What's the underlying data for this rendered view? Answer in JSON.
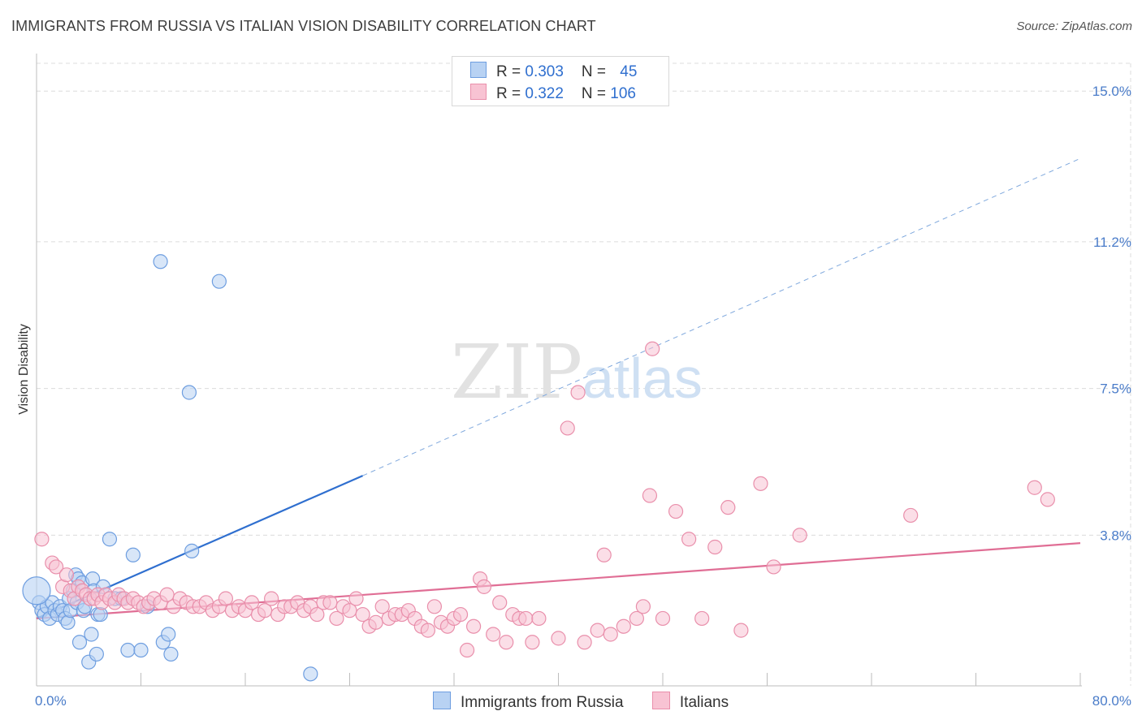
{
  "title": "IMMIGRANTS FROM RUSSIA VS ITALIAN VISION DISABILITY CORRELATION CHART",
  "source": "Source: ZipAtlas.com",
  "watermark": {
    "zip": "ZIP",
    "atlas": "atlas"
  },
  "legend": {
    "rows": [
      {
        "r_label": "R = ",
        "r_value": "0.303",
        "n_label": "N = ",
        "n_value": "45",
        "color": "#b8d2f3",
        "border": "#6e9ee0"
      },
      {
        "r_label": "R = ",
        "r_value": "0.322",
        "n_label": "N = ",
        "n_value": "106",
        "color": "#f8c3d3",
        "border": "#e98fab"
      }
    ],
    "bottom": [
      {
        "label": "Immigrants from Russia",
        "color": "#b8d2f3",
        "border": "#6e9ee0"
      },
      {
        "label": "Italians",
        "color": "#f8c3d3",
        "border": "#e98fab"
      }
    ]
  },
  "chart_data": {
    "type": "scatter",
    "title": "IMMIGRANTS FROM RUSSIA VS ITALIAN VISION DISABILITY CORRELATION CHART",
    "xlabel": "",
    "ylabel": "Vision Disability",
    "xlim": [
      0,
      80
    ],
    "ylim": [
      0,
      15.7
    ],
    "x_ticks": [
      "0.0%",
      "80.0%"
    ],
    "y_ticks": [
      {
        "value": 3.8,
        "label": "3.8%"
      },
      {
        "value": 7.5,
        "label": "7.5%"
      },
      {
        "value": 11.2,
        "label": "11.2%"
      },
      {
        "value": 15.0,
        "label": "15.0%"
      }
    ],
    "grid": true,
    "legend_position": "top-center",
    "series": [
      {
        "name": "Immigrants from Russia",
        "color": "#6e9ee0",
        "fill": "#b8d2f3",
        "trend": {
          "x": [
            0,
            25
          ],
          "y": [
            1.7,
            5.3
          ],
          "extended_to": [
            80,
            13.3
          ],
          "color": "#2f6fcf"
        },
        "points": [
          [
            0.2,
            2.1
          ],
          [
            0.4,
            1.9
          ],
          [
            0.6,
            1.8
          ],
          [
            0.8,
            2.0
          ],
          [
            1.0,
            1.7
          ],
          [
            1.2,
            2.1
          ],
          [
            1.4,
            1.9
          ],
          [
            1.6,
            1.8
          ],
          [
            1.8,
            2.0
          ],
          [
            2.0,
            1.9
          ],
          [
            2.2,
            1.7
          ],
          [
            2.4,
            1.6
          ],
          [
            2.5,
            2.2
          ],
          [
            2.6,
            1.9
          ],
          [
            2.8,
            2.4
          ],
          [
            3.0,
            2.8
          ],
          [
            3.1,
            2.1
          ],
          [
            3.2,
            2.7
          ],
          [
            3.3,
            1.1
          ],
          [
            3.5,
            2.6
          ],
          [
            3.6,
            1.9
          ],
          [
            3.7,
            2.0
          ],
          [
            4.0,
            0.6
          ],
          [
            4.2,
            1.3
          ],
          [
            4.3,
            2.7
          ],
          [
            4.4,
            2.4
          ],
          [
            4.6,
            0.8
          ],
          [
            4.7,
            1.8
          ],
          [
            4.9,
            1.8
          ],
          [
            5.1,
            2.5
          ],
          [
            5.6,
            3.7
          ],
          [
            6.0,
            2.2
          ],
          [
            6.5,
            2.2
          ],
          [
            7.0,
            0.9
          ],
          [
            7.4,
            3.3
          ],
          [
            8.0,
            0.9
          ],
          [
            8.5,
            2.0
          ],
          [
            9.5,
            10.7
          ],
          [
            9.7,
            1.1
          ],
          [
            10.1,
            1.3
          ],
          [
            10.3,
            0.8
          ],
          [
            11.7,
            7.4
          ],
          [
            11.9,
            3.4
          ],
          [
            14.0,
            10.2
          ],
          [
            21.0,
            0.3
          ]
        ],
        "big_point": [
          0.0,
          2.4
        ]
      },
      {
        "name": "Italians",
        "color": "#e98fab",
        "fill": "#f8c3d3",
        "trend": {
          "x": [
            0,
            80
          ],
          "y": [
            1.7,
            3.6
          ],
          "color": "#e06e95"
        },
        "points": [
          [
            0.4,
            3.7
          ],
          [
            1.2,
            3.1
          ],
          [
            1.5,
            3.0
          ],
          [
            2.0,
            2.5
          ],
          [
            2.3,
            2.8
          ],
          [
            2.6,
            2.4
          ],
          [
            2.9,
            2.2
          ],
          [
            3.2,
            2.5
          ],
          [
            3.5,
            2.4
          ],
          [
            3.8,
            2.3
          ],
          [
            4.1,
            2.2
          ],
          [
            4.4,
            2.2
          ],
          [
            4.7,
            2.3
          ],
          [
            5.0,
            2.1
          ],
          [
            5.3,
            2.3
          ],
          [
            5.6,
            2.2
          ],
          [
            6.0,
            2.1
          ],
          [
            6.3,
            2.3
          ],
          [
            6.7,
            2.2
          ],
          [
            7.0,
            2.1
          ],
          [
            7.4,
            2.2
          ],
          [
            7.8,
            2.1
          ],
          [
            8.2,
            2.0
          ],
          [
            8.6,
            2.1
          ],
          [
            9.0,
            2.2
          ],
          [
            9.5,
            2.1
          ],
          [
            10.0,
            2.3
          ],
          [
            10.5,
            2.0
          ],
          [
            11.0,
            2.2
          ],
          [
            11.5,
            2.1
          ],
          [
            12.0,
            2.0
          ],
          [
            12.5,
            2.0
          ],
          [
            13.0,
            2.1
          ],
          [
            13.5,
            1.9
          ],
          [
            14.0,
            2.0
          ],
          [
            14.5,
            2.2
          ],
          [
            15.0,
            1.9
          ],
          [
            15.5,
            2.0
          ],
          [
            16.0,
            1.9
          ],
          [
            16.5,
            2.1
          ],
          [
            17.0,
            1.8
          ],
          [
            17.5,
            1.9
          ],
          [
            18.0,
            2.2
          ],
          [
            18.5,
            1.8
          ],
          [
            19.0,
            2.0
          ],
          [
            19.5,
            2.0
          ],
          [
            20.0,
            2.1
          ],
          [
            20.5,
            1.9
          ],
          [
            21.0,
            2.0
          ],
          [
            21.5,
            1.8
          ],
          [
            22.0,
            2.1
          ],
          [
            22.5,
            2.1
          ],
          [
            23.0,
            1.7
          ],
          [
            23.5,
            2.0
          ],
          [
            24.0,
            1.9
          ],
          [
            24.5,
            2.2
          ],
          [
            25.0,
            1.8
          ],
          [
            25.5,
            1.5
          ],
          [
            26.0,
            1.6
          ],
          [
            26.5,
            2.0
          ],
          [
            27.0,
            1.7
          ],
          [
            27.5,
            1.8
          ],
          [
            28.0,
            1.8
          ],
          [
            28.5,
            1.9
          ],
          [
            29.0,
            1.7
          ],
          [
            29.5,
            1.5
          ],
          [
            30.0,
            1.4
          ],
          [
            30.5,
            2.0
          ],
          [
            31.0,
            1.6
          ],
          [
            31.5,
            1.5
          ],
          [
            32.0,
            1.7
          ],
          [
            32.5,
            1.8
          ],
          [
            33.0,
            0.9
          ],
          [
            33.5,
            1.5
          ],
          [
            34.0,
            2.7
          ],
          [
            34.3,
            2.5
          ],
          [
            35.0,
            1.3
          ],
          [
            35.5,
            2.1
          ],
          [
            36.0,
            1.1
          ],
          [
            36.5,
            1.8
          ],
          [
            37.0,
            1.7
          ],
          [
            37.5,
            1.7
          ],
          [
            38.0,
            1.1
          ],
          [
            38.5,
            1.7
          ],
          [
            40.0,
            1.2
          ],
          [
            40.7,
            6.5
          ],
          [
            41.5,
            7.4
          ],
          [
            42.0,
            1.1
          ],
          [
            43.0,
            1.4
          ],
          [
            43.5,
            3.3
          ],
          [
            44.0,
            1.3
          ],
          [
            45.0,
            1.5
          ],
          [
            46.0,
            1.7
          ],
          [
            46.5,
            2.0
          ],
          [
            47.0,
            4.8
          ],
          [
            47.2,
            8.5
          ],
          [
            48.0,
            1.7
          ],
          [
            49.0,
            4.4
          ],
          [
            50.0,
            3.7
          ],
          [
            51.0,
            1.7
          ],
          [
            52.0,
            3.5
          ],
          [
            53.0,
            4.5
          ],
          [
            54.0,
            1.4
          ],
          [
            55.5,
            5.1
          ],
          [
            56.5,
            3.0
          ],
          [
            58.5,
            3.8
          ],
          [
            67.0,
            4.3
          ],
          [
            76.5,
            5.0
          ],
          [
            77.5,
            4.7
          ]
        ]
      }
    ]
  }
}
